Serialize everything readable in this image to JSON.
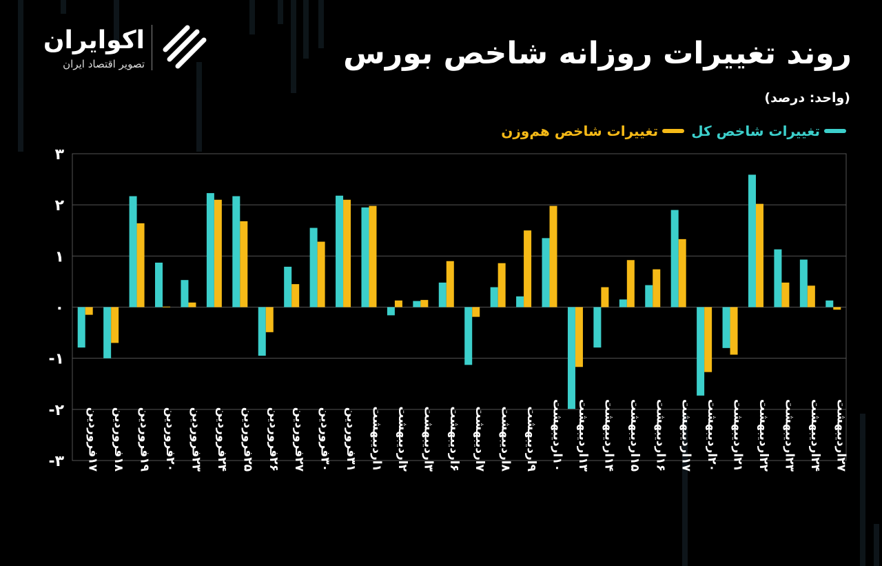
{
  "header": {
    "title": "روند تغییرات روزانه شاخص بورس",
    "unit": "(واحد: درصد)"
  },
  "brand": {
    "name": "اکوایران",
    "tagline": "تصویر اقتصاد ایران"
  },
  "colors": {
    "series_total": "#3CCFCB",
    "series_equal": "#F6BA17",
    "grid": "#555555",
    "background": "#000000"
  },
  "chart_data": {
    "type": "bar",
    "ylim": [
      -3,
      3
    ],
    "yticks": [
      3,
      2,
      1,
      0,
      -1,
      -2,
      -3
    ],
    "ytick_labels": [
      "۳",
      "۲",
      "۱",
      "۰",
      "-۱",
      "-۲",
      "-۳"
    ],
    "legend_position": "top-right",
    "grid": true,
    "categories": [
      "۱۷فروردین",
      "۱۸فروردین",
      "۱۹فروردین",
      "۲۰فروردین",
      "۲۳فروردین",
      "۲۴فروردین",
      "۲۵فروردین",
      "۲۶فروردین",
      "۲۷فروردین",
      "۳۰فروردین",
      "۳۱فروردین",
      "۱اردیبهشت",
      "۲اردیبهشت",
      "۳اردیبهشت",
      "۶اردیبهشت",
      "۷اردیبهشت",
      "۸اردیبهشت",
      "۹اردیبهشت",
      "۱۰اردیبهشت",
      "۱۳اردیبهشت",
      "۱۴اردیبهشت",
      "۱۵اردیبهشت",
      "۱۶اردیبهشت",
      "۱۷اردیبهشت",
      "۲۰اردیبهشت",
      "۲۱اردیبهشت",
      "۲۲اردیبهشت",
      "۲۳اردیبهشت",
      "۲۴اردیبهشت",
      "۲۷اردیبهشت"
    ],
    "series": [
      {
        "name": "تغییرات شاخص کل",
        "values": [
          -0.79,
          -1.0,
          2.17,
          0.87,
          0.53,
          2.23,
          2.17,
          -0.95,
          0.79,
          1.55,
          2.18,
          1.95,
          -0.16,
          0.12,
          0.48,
          -1.13,
          0.39,
          0.21,
          1.35,
          -1.99,
          -0.79,
          0.15,
          0.43,
          1.9,
          -1.73,
          -0.8,
          2.59,
          1.13,
          0.93,
          0.13
        ]
      },
      {
        "name": "تغییرات شاخص هم‌وزن",
        "values": [
          -0.15,
          -0.7,
          1.64,
          0.01,
          0.09,
          2.1,
          1.68,
          -0.49,
          0.45,
          1.28,
          2.1,
          1.98,
          0.13,
          0.14,
          0.9,
          -0.19,
          0.86,
          1.5,
          1.98,
          -1.17,
          0.39,
          0.92,
          0.74,
          1.33,
          -1.27,
          -0.93,
          2.02,
          0.48,
          0.42,
          -0.05
        ]
      }
    ]
  }
}
